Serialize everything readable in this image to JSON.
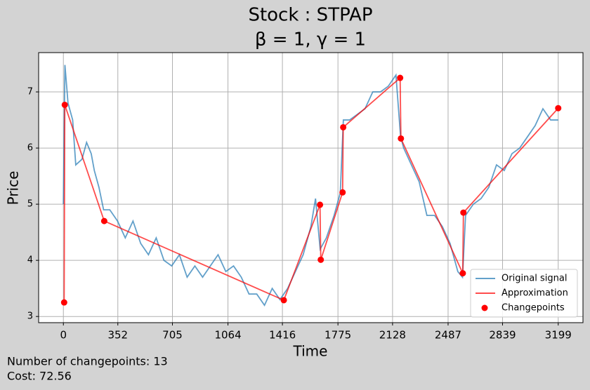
{
  "chart_data": {
    "type": "line",
    "title": "Stock : STPAP",
    "subtitle": "β = 1, γ = 1",
    "x_label": "Time",
    "y_label": "Price",
    "xlim": [
      -160,
      3359
    ],
    "ylim": [
      2.89,
      7.7
    ],
    "xticks": [
      0,
      352,
      705,
      1064,
      1416,
      1775,
      2128,
      2487,
      2839,
      3199
    ],
    "yticks": [
      3,
      4,
      5,
      6,
      7
    ],
    "grid": true,
    "legend": "lower right",
    "series": [
      {
        "name": "Original signal",
        "color": "#1f77b4",
        "kind": "line",
        "x": [
          0,
          10,
          30,
          60,
          80,
          120,
          150,
          180,
          200,
          230,
          260,
          300,
          350,
          400,
          450,
          500,
          550,
          600,
          650,
          700,
          750,
          800,
          850,
          900,
          950,
          1000,
          1050,
          1100,
          1150,
          1200,
          1250,
          1300,
          1350,
          1400,
          1450,
          1500,
          1550,
          1600,
          1630,
          1660,
          1700,
          1750,
          1790,
          1810,
          1850,
          1900,
          1950,
          2000,
          2050,
          2100,
          2150,
          2180,
          2200,
          2250,
          2300,
          2350,
          2400,
          2450,
          2500,
          2550,
          2580,
          2600,
          2650,
          2700,
          2750,
          2800,
          2850,
          2900,
          2950,
          3000,
          3050,
          3100,
          3150,
          3199
        ],
        "values": [
          5.0,
          7.48,
          6.8,
          6.5,
          5.7,
          5.8,
          6.1,
          5.9,
          5.6,
          5.3,
          4.9,
          4.9,
          4.7,
          4.4,
          4.7,
          4.3,
          4.1,
          4.4,
          4.0,
          3.9,
          4.1,
          3.7,
          3.9,
          3.7,
          3.9,
          4.1,
          3.8,
          3.9,
          3.7,
          3.4,
          3.4,
          3.2,
          3.5,
          3.3,
          3.5,
          3.8,
          4.1,
          4.6,
          5.1,
          4.2,
          4.4,
          4.8,
          5.2,
          6.5,
          6.5,
          6.6,
          6.7,
          7.0,
          7.0,
          7.1,
          7.3,
          6.2,
          6.0,
          5.7,
          5.4,
          4.8,
          4.8,
          4.6,
          4.3,
          3.8,
          3.7,
          4.8,
          5.0,
          5.1,
          5.3,
          5.7,
          5.6,
          5.9,
          6.0,
          6.2,
          6.4,
          6.7,
          6.5,
          6.5
        ]
      },
      {
        "name": "Approximation",
        "color": "#ff0000",
        "kind": "line",
        "x": [
          5,
          9,
          264,
          1425,
          1659,
          1664,
          1805,
          1809,
          2177,
          2182,
          2582,
          2586,
          3199
        ],
        "values": [
          3.25,
          6.77,
          4.7,
          3.29,
          4.99,
          4.01,
          5.21,
          6.37,
          7.25,
          6.17,
          3.77,
          4.85,
          6.71
        ]
      },
      {
        "name": "Changepoints",
        "color": "#ff0000",
        "kind": "scatter",
        "x": [
          5,
          9,
          264,
          1425,
          1659,
          1664,
          1805,
          1809,
          2177,
          2182,
          2582,
          2586,
          3199
        ],
        "values": [
          3.25,
          6.77,
          4.7,
          3.29,
          4.99,
          4.01,
          5.21,
          6.37,
          7.25,
          6.17,
          3.77,
          4.85,
          6.71
        ]
      }
    ],
    "footer": [
      "Number of changepoints: 13",
      "Cost: 72.56"
    ]
  }
}
